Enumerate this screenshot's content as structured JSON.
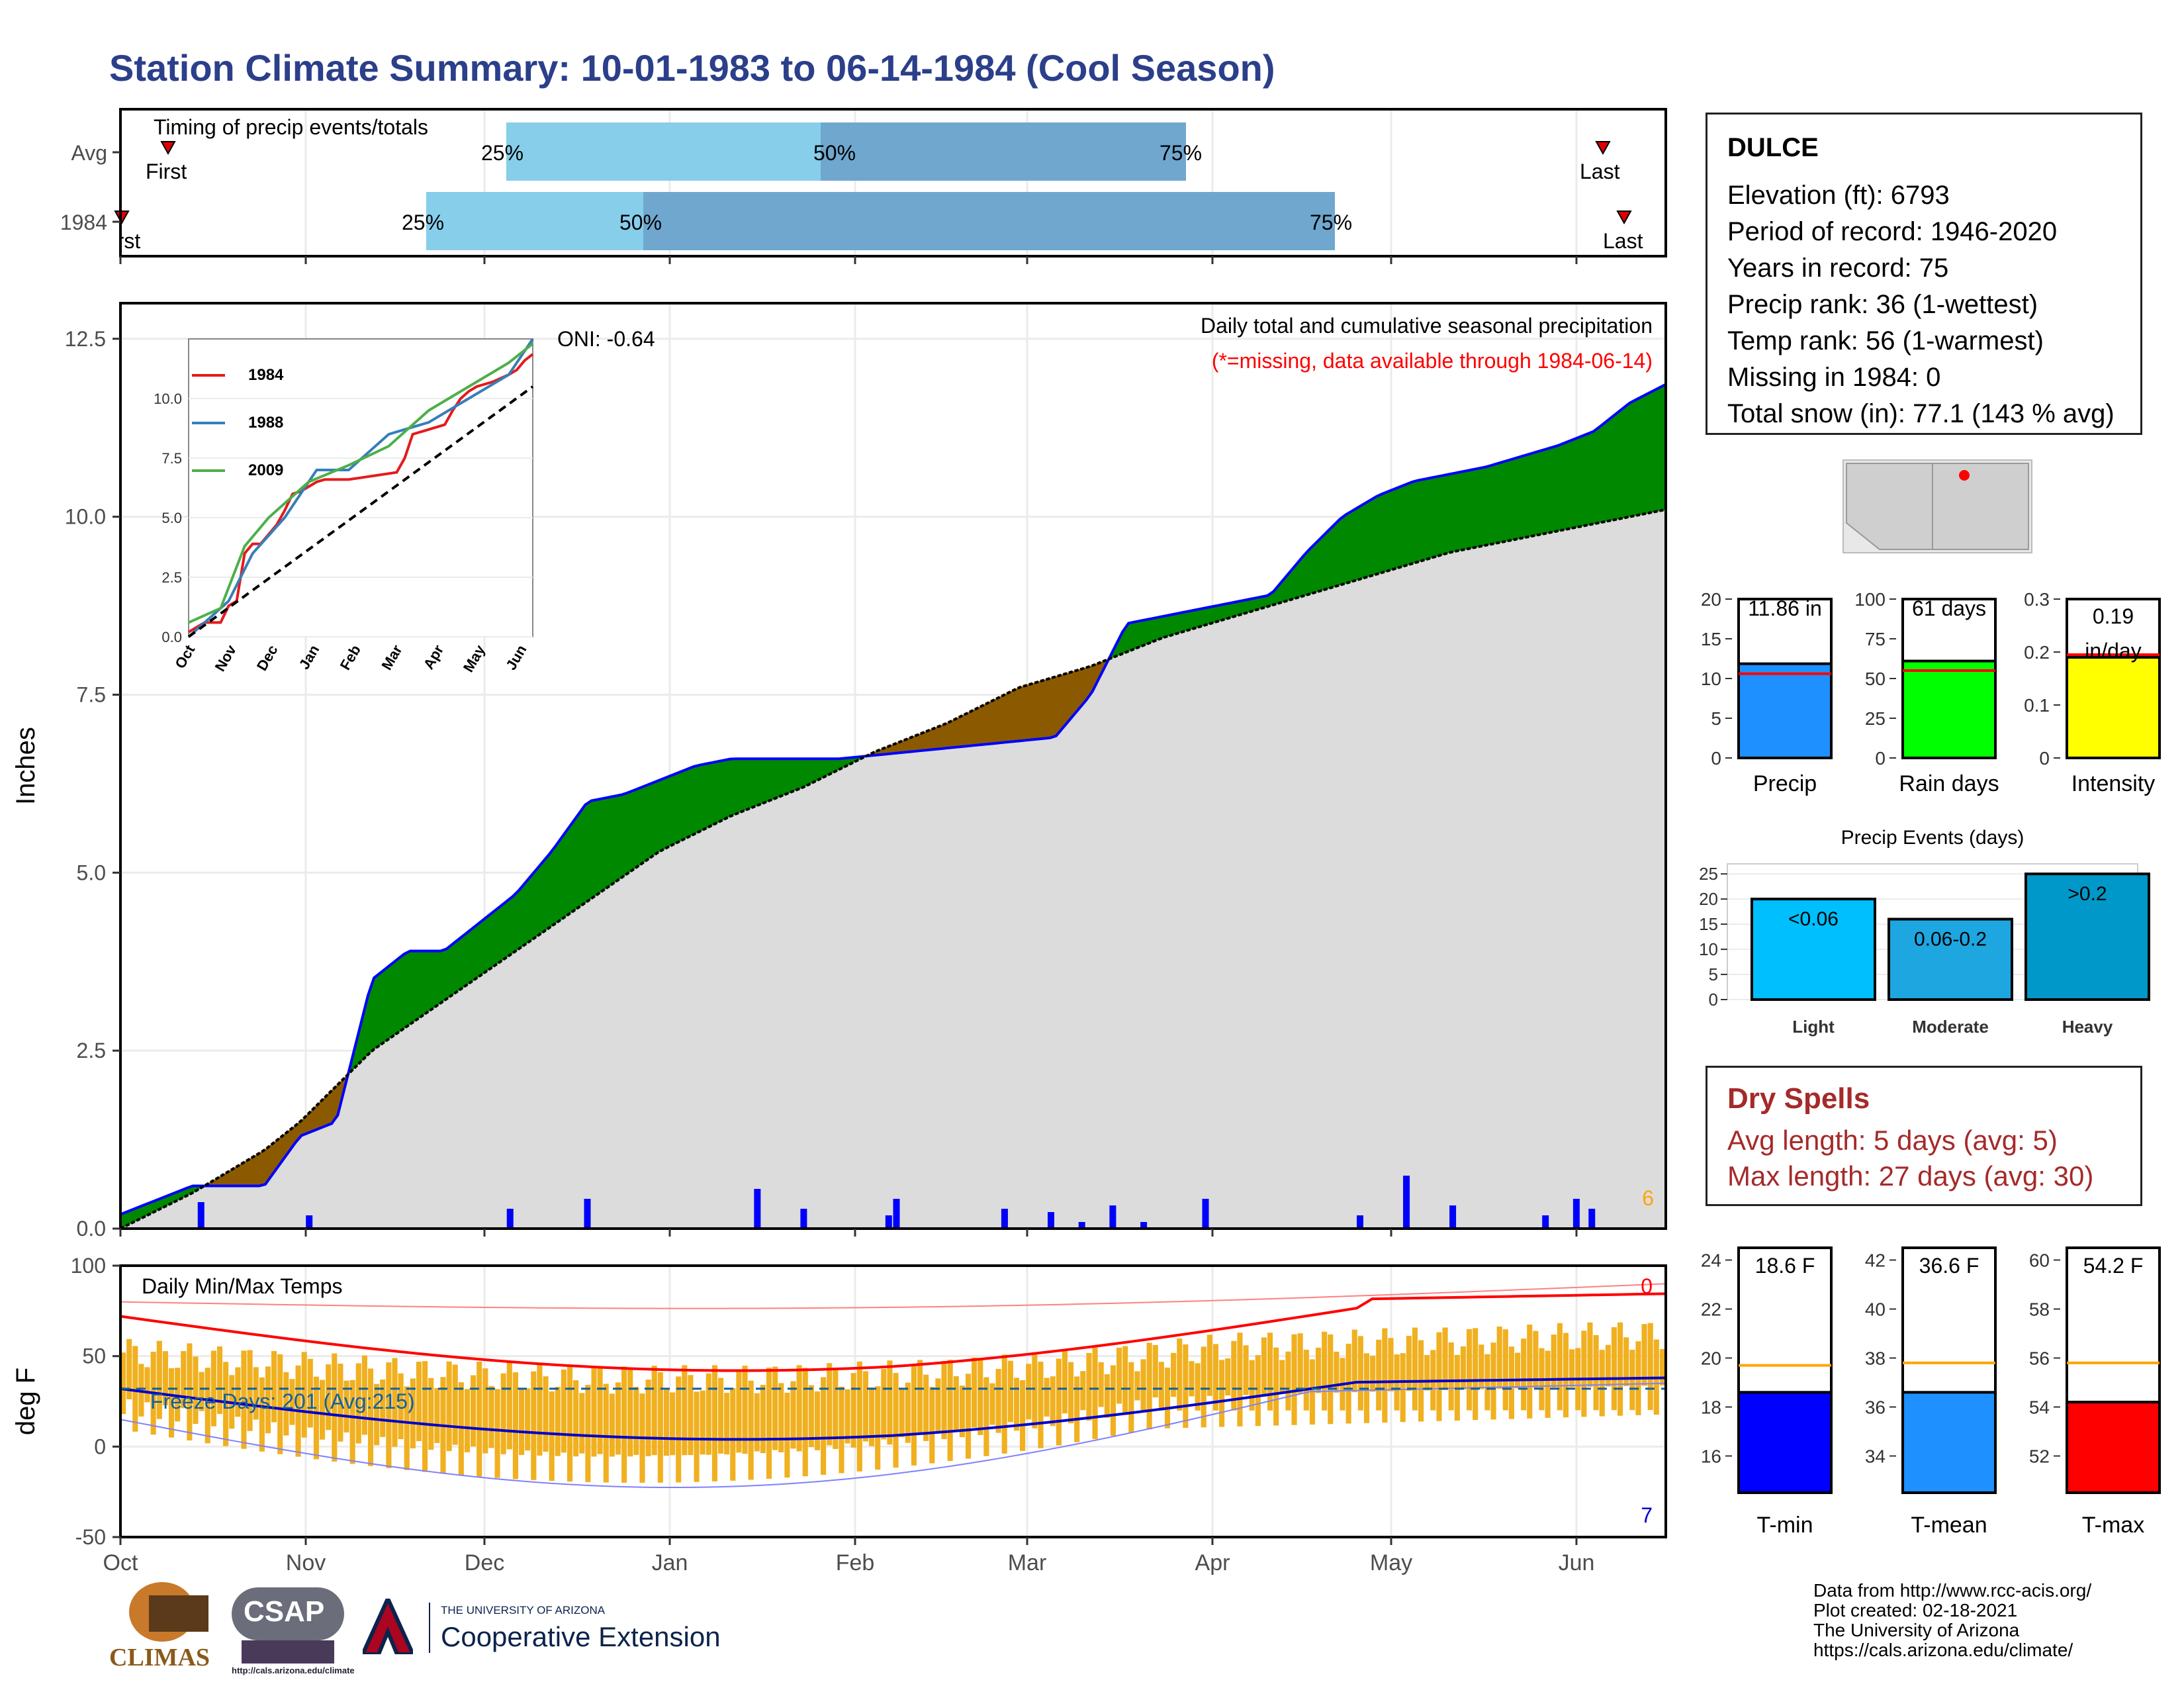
{
  "title": "Station Climate Summary: 10-01-1983 to 06-14-1984 (Cool Season)",
  "timing_panel": {
    "label": "Timing of precip events/totals",
    "rows": [
      {
        "name": "Avg",
        "first": "First",
        "last": "Last",
        "q25": "25%",
        "q50": "50%",
        "q75": "75%"
      },
      {
        "name": "1984",
        "first": "First",
        "last": "Last",
        "q25": "25%",
        "q50": "50%",
        "q75": "75%"
      }
    ]
  },
  "precip_panel": {
    "ylabel": "Inches",
    "oni": "ONI: -0.64",
    "caption": "Daily total and cumulative seasonal precipitation",
    "missing_note": "(*=missing, data available through 1984-06-14)",
    "corner_count": "6",
    "inset_legend": [
      "1984",
      "1988",
      "2009"
    ]
  },
  "temp_panel": {
    "ylabel": "deg F",
    "label": "Daily Min/Max Temps",
    "freeze_days": "Freeze Days: 201 (Avg:215)",
    "count_top": "0",
    "count_bottom": "7"
  },
  "months": [
    "Oct",
    "Nov",
    "Dec",
    "Jan",
    "Feb",
    "Mar",
    "Apr",
    "May",
    "Jun"
  ],
  "inset_months": [
    "Oct",
    "Nov",
    "Dec",
    "Jan",
    "Feb",
    "Mar",
    "Apr",
    "May",
    "Jun"
  ],
  "station": {
    "name": "DULCE",
    "lines": [
      "Elevation (ft): 6793",
      "Period of record: 1946-2020",
      "Years in record: 75",
      "Precip rank: 36 (1-wettest)",
      "Temp rank: 56 (1-warmest)",
      "Missing in 1984: 0",
      "Total snow (in): 77.1 (143 % avg)"
    ]
  },
  "dry_spells": {
    "title": "Dry Spells",
    "avg": "Avg length: 5 days (avg: 5)",
    "max": "Max length: 27 days (avg: 30)"
  },
  "precip_events": {
    "title": "Precip Events (days)",
    "bars": [
      {
        "label": "<0.06",
        "cat": "Light",
        "value": 20
      },
      {
        "label": "0.06-0.2",
        "cat": "Moderate",
        "value": 16
      },
      {
        "label": ">0.2",
        "cat": "Heavy",
        "value": 25
      }
    ]
  },
  "footer": [
    "Data from http://www.rcc-acis.org/",
    "Plot created: 02-18-2021",
    "The University of Arizona",
    "https://cals.arizona.edu/climate/"
  ],
  "logos": {
    "climas": "CLIMAS",
    "csap": "CSAP",
    "csap_url": "http://cals.arizona.edu/climate",
    "ua_top": "THE UNIVERSITY OF ARIZONA",
    "ua_bottom": "Cooperative Extension"
  },
  "chart_data": [
    {
      "type": "bar",
      "title": "",
      "categories": [
        "Precip"
      ],
      "values": [
        11.86
      ],
      "value_label": "11.86 in",
      "avg_line": 10.6,
      "ylim": [
        0,
        20
      ],
      "yticks": [
        0,
        5,
        10,
        15,
        20
      ],
      "color": "#1e90ff"
    },
    {
      "type": "bar",
      "categories": [
        "Rain days"
      ],
      "values": [
        61
      ],
      "value_label": "61 days",
      "avg_line": 55,
      "ylim": [
        0,
        100
      ],
      "yticks": [
        0,
        25,
        50,
        75,
        100
      ],
      "color": "#00ff00"
    },
    {
      "type": "bar",
      "categories": [
        "Intensity"
      ],
      "values": [
        0.19
      ],
      "value_label": "0.19 in/day",
      "avg_line": 0.195,
      "ylim": [
        0,
        0.3
      ],
      "yticks": [
        0.0,
        0.1,
        0.2,
        0.3
      ],
      "color": "#ffff00"
    },
    {
      "type": "bar",
      "categories": [
        "Light",
        "Moderate",
        "Heavy"
      ],
      "values": [
        20,
        16,
        25
      ],
      "ylim": [
        0,
        25
      ],
      "yticks": [
        0,
        5,
        10,
        15,
        20,
        25
      ]
    },
    {
      "type": "bar",
      "categories": [
        "T-min"
      ],
      "values": [
        18.6
      ],
      "value_label": "18.6 F",
      "avg_line": 19.7,
      "ylim": [
        14.5,
        24.5
      ],
      "yticks": [
        16,
        18,
        20,
        22,
        24
      ],
      "color": "#0000ff"
    },
    {
      "type": "bar",
      "categories": [
        "T-mean"
      ],
      "values": [
        36.6
      ],
      "value_label": "36.6 F",
      "avg_line": 37.8,
      "ylim": [
        32.5,
        42.5
      ],
      "yticks": [
        34,
        36,
        38,
        40,
        42
      ],
      "color": "#1e90ff"
    },
    {
      "type": "bar",
      "categories": [
        "T-max"
      ],
      "values": [
        54.2
      ],
      "value_label": "54.2 F",
      "avg_line": 55.8,
      "ylim": [
        50.5,
        60.5
      ],
      "yticks": [
        52,
        54,
        56,
        58,
        60
      ],
      "color": "#ff0000"
    },
    {
      "type": "area",
      "title": "Daily total and cumulative seasonal precipitation",
      "ylabel": "Inches",
      "ylim": [
        0,
        13
      ],
      "yticks": [
        0.0,
        2.5,
        5.0,
        7.5,
        10.0,
        12.5
      ],
      "series": [
        {
          "name": "1984",
          "points": [
            [
              0,
              0.2
            ],
            [
              1,
              0.4
            ],
            [
              2,
              0.6
            ],
            [
              4,
              0.6
            ],
            [
              5,
              1.3
            ],
            [
              6,
              1.5
            ],
            [
              7,
              3.5
            ],
            [
              7.5,
              3.7
            ],
            [
              8,
              3.9
            ],
            [
              9,
              3.9
            ],
            [
              10,
              4.3
            ],
            [
              11,
              4.7
            ],
            [
              12,
              5.3
            ],
            [
              13,
              6.0
            ],
            [
              14,
              6.1
            ],
            [
              16,
              6.5
            ],
            [
              17,
              6.6
            ],
            [
              19,
              6.6
            ],
            [
              20,
              6.6
            ],
            [
              22,
              6.7
            ],
            [
              23,
              6.75
            ],
            [
              26,
              6.9
            ],
            [
              27,
              7.5
            ],
            [
              28,
              8.5
            ],
            [
              29,
              8.6
            ],
            [
              30,
              8.7
            ],
            [
              32,
              8.9
            ],
            [
              33,
              9.5
            ],
            [
              34,
              10.0
            ],
            [
              35,
              10.3
            ],
            [
              36,
              10.5
            ],
            [
              38,
              10.7
            ],
            [
              40,
              11.0
            ],
            [
              41,
              11.2
            ],
            [
              42,
              11.6
            ],
            [
              43,
              11.86
            ]
          ]
        },
        {
          "name": "avg",
          "points": [
            [
              0,
              0
            ],
            [
              2,
              0.5
            ],
            [
              4,
              1.1
            ],
            [
              5,
              1.5
            ],
            [
              7,
              2.5
            ],
            [
              9,
              3.2
            ],
            [
              11,
              3.9
            ],
            [
              13,
              4.6
            ],
            [
              15,
              5.3
            ],
            [
              17,
              5.8
            ],
            [
              19,
              6.2
            ],
            [
              21,
              6.7
            ],
            [
              23,
              7.1
            ],
            [
              25,
              7.6
            ],
            [
              27,
              7.9
            ],
            [
              29,
              8.3
            ],
            [
              31,
              8.6
            ],
            [
              33,
              8.9
            ],
            [
              35,
              9.2
            ],
            [
              37,
              9.5
            ],
            [
              39,
              9.7
            ],
            [
              41,
              9.9
            ],
            [
              43,
              10.1
            ]
          ]
        }
      ]
    },
    {
      "type": "line",
      "title": "Daily Min/Max Temps",
      "ylabel": "deg F",
      "ylim": [
        -50,
        100
      ],
      "yticks": [
        -50,
        0,
        50,
        100
      ]
    }
  ]
}
